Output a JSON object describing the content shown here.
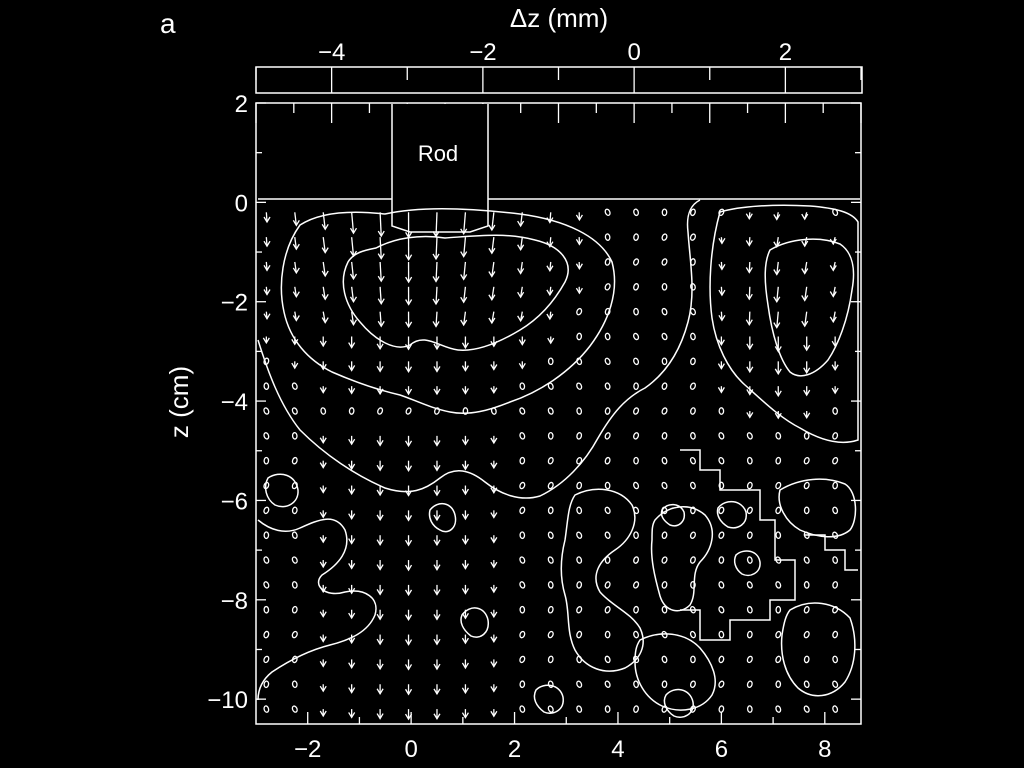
{
  "panel_label": "a",
  "colors": {
    "background": "#000000",
    "foreground": "#ffffff"
  },
  "chart_data": {
    "type": "vector-field-contour",
    "title": "",
    "top_axis": {
      "label": "Δz (mm)",
      "range": [
        -5.0,
        3.0
      ],
      "ticks": [
        -4,
        -2,
        0,
        2
      ],
      "tick_labels": [
        "−4",
        "−2",
        "0",
        "2"
      ]
    },
    "xaxis": {
      "label": "",
      "range": [
        -3.0,
        8.7
      ],
      "ticks": [
        -2,
        0,
        2,
        4,
        6,
        8
      ],
      "tick_labels": [
        "−2",
        "0",
        "2",
        "4",
        "6",
        "8"
      ]
    },
    "yaxis": {
      "label": "z (cm)",
      "range": [
        -10.5,
        2.0
      ],
      "ticks": [
        2,
        0,
        -2,
        -4,
        -6,
        -8,
        -10
      ],
      "tick_labels": [
        "2",
        "0",
        "−2",
        "−4",
        "−6",
        "−8",
        "−10"
      ]
    },
    "annotations": [
      {
        "text": "Rod",
        "x_range": [
          -1.0,
          1.0
        ],
        "y_range": [
          0.0,
          2.0
        ]
      }
    ],
    "vector_grid": {
      "x_start": -2.8,
      "x_step": 0.55,
      "y_start": -0.2,
      "y_step": -0.5,
      "rows": 21
    },
    "contour_levels": 3,
    "grid": false
  }
}
